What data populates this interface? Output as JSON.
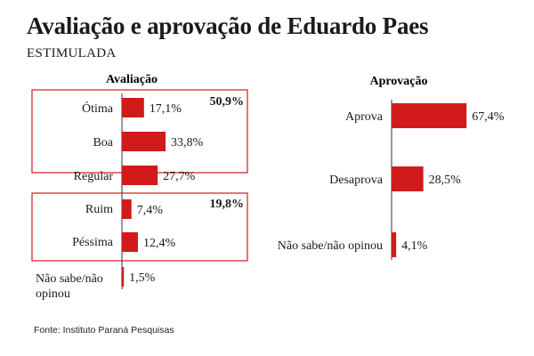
{
  "header": {
    "title": "Avaliação e aprovação de Eduardo Paes",
    "subtitle": "ESTIMULADA"
  },
  "footer": {
    "source": "Fonte: Instituto Paraná Pesquisas"
  },
  "colors": {
    "bar": "#d11a1a",
    "box_border": "#d11a1a",
    "axis": "#333333",
    "text": "#1a1a1a"
  },
  "chart_data": [
    {
      "type": "bar",
      "orientation": "horizontal",
      "title": "Avaliação",
      "categories": [
        "Ótima",
        "Boa",
        "Regular",
        "Ruim",
        "Péssima",
        "Não sabe/não opinou"
      ],
      "values": [
        17.1,
        33.8,
        27.7,
        7.4,
        12.4,
        1.5
      ],
      "value_labels": [
        "17,1%",
        "33,8%",
        "27,7%",
        "7,4%",
        "12,4%",
        "1,5%"
      ],
      "groups": [
        {
          "members": [
            "Ótima",
            "Boa"
          ],
          "total_label": "50,9%"
        },
        {
          "members": [
            "Ruim",
            "Péssima"
          ],
          "total_label": "19,8%"
        }
      ]
    },
    {
      "type": "bar",
      "orientation": "horizontal",
      "title": "Aprovação",
      "categories": [
        "Aprova",
        "Desaprova",
        "Não sabe/não opinou"
      ],
      "values": [
        67.4,
        28.5,
        4.1
      ],
      "value_labels": [
        "67,4%",
        "28,5%",
        "4,1%"
      ]
    }
  ]
}
